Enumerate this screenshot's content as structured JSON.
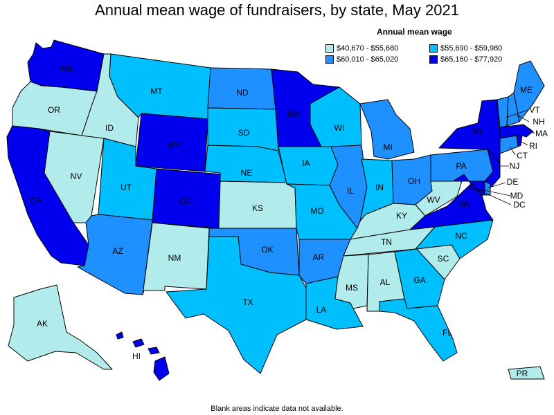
{
  "title": "Annual mean wage of fundraisers, by state, May 2021",
  "legend": {
    "title": "Annual mean wage",
    "bins": [
      {
        "id": "b1",
        "label": "$40,670 - $55,680",
        "color": "#b2ebeb"
      },
      {
        "id": "b2",
        "label": "$55,690 - $59,980",
        "color": "#00bfff"
      },
      {
        "id": "b3",
        "label": "$60,010 - $65,020",
        "color": "#1e90ff"
      },
      {
        "id": "b4",
        "label": "$65,160 - $77,920",
        "color": "#0000ee"
      }
    ]
  },
  "footer": "Blank areas indicate data not available.",
  "states": {
    "WA": {
      "label": "WA",
      "bin": "b4"
    },
    "OR": {
      "label": "OR",
      "bin": "b1"
    },
    "CA": {
      "label": "CA",
      "bin": "b4"
    },
    "NV": {
      "label": "NV",
      "bin": "b1"
    },
    "ID": {
      "label": "ID",
      "bin": "b1"
    },
    "MT": {
      "label": "MT",
      "bin": "b2"
    },
    "WY": {
      "label": "WY",
      "bin": "b4"
    },
    "UT": {
      "label": "UT",
      "bin": "b2"
    },
    "AZ": {
      "label": "AZ",
      "bin": "b3"
    },
    "CO": {
      "label": "CO",
      "bin": "b4"
    },
    "NM": {
      "label": "NM",
      "bin": "b1"
    },
    "ND": {
      "label": "ND",
      "bin": "b3"
    },
    "SD": {
      "label": "SD",
      "bin": "b2"
    },
    "NE": {
      "label": "NE",
      "bin": "b2"
    },
    "KS": {
      "label": "KS",
      "bin": "b1"
    },
    "OK": {
      "label": "OK",
      "bin": "b3"
    },
    "TX": {
      "label": "TX",
      "bin": "b2"
    },
    "MN": {
      "label": "MN",
      "bin": "b4"
    },
    "IA": {
      "label": "IA",
      "bin": "b2"
    },
    "MO": {
      "label": "MO",
      "bin": "b2"
    },
    "AR": {
      "label": "AR",
      "bin": "b3"
    },
    "LA": {
      "label": "LA",
      "bin": "b2"
    },
    "WI": {
      "label": "WI",
      "bin": "b2"
    },
    "IL": {
      "label": "IL",
      "bin": "b3"
    },
    "MI": {
      "label": "MI",
      "bin": "b3"
    },
    "IN": {
      "label": "IN",
      "bin": "b2"
    },
    "OH": {
      "label": "OH",
      "bin": "b3"
    },
    "KY": {
      "label": "KY",
      "bin": "b1"
    },
    "TN": {
      "label": "TN",
      "bin": "b1"
    },
    "MS": {
      "label": "MS",
      "bin": "b1"
    },
    "AL": {
      "label": "AL",
      "bin": "b1"
    },
    "GA": {
      "label": "GA",
      "bin": "b2"
    },
    "FL": {
      "label": "FL",
      "bin": "b2"
    },
    "SC": {
      "label": "SC",
      "bin": "b1"
    },
    "NC": {
      "label": "NC",
      "bin": "b2"
    },
    "VA": {
      "label": "VA",
      "bin": "b4"
    },
    "WV": {
      "label": "WV",
      "bin": "b1"
    },
    "PA": {
      "label": "PA",
      "bin": "b3"
    },
    "NY": {
      "label": "NY",
      "bin": "b4"
    },
    "ME": {
      "label": "ME",
      "bin": "b3"
    },
    "VT": {
      "label": "VT",
      "bin": "b3"
    },
    "NH": {
      "label": "NH",
      "bin": "b3"
    },
    "MA": {
      "label": "MA",
      "bin": "b4"
    },
    "RI": {
      "label": "RI",
      "bin": "b4"
    },
    "CT": {
      "label": "CT",
      "bin": "b3"
    },
    "NJ": {
      "label": "NJ",
      "bin": "b4"
    },
    "DE": {
      "label": "DE",
      "bin": "b3"
    },
    "MD": {
      "label": "MD",
      "bin": "b4"
    },
    "DC": {
      "label": "DC",
      "bin": "b4"
    },
    "AK": {
      "label": "AK",
      "bin": "b1"
    },
    "HI": {
      "label": "HI",
      "bin": "b4"
    },
    "PR": {
      "label": "PR",
      "bin": "b1"
    }
  }
}
